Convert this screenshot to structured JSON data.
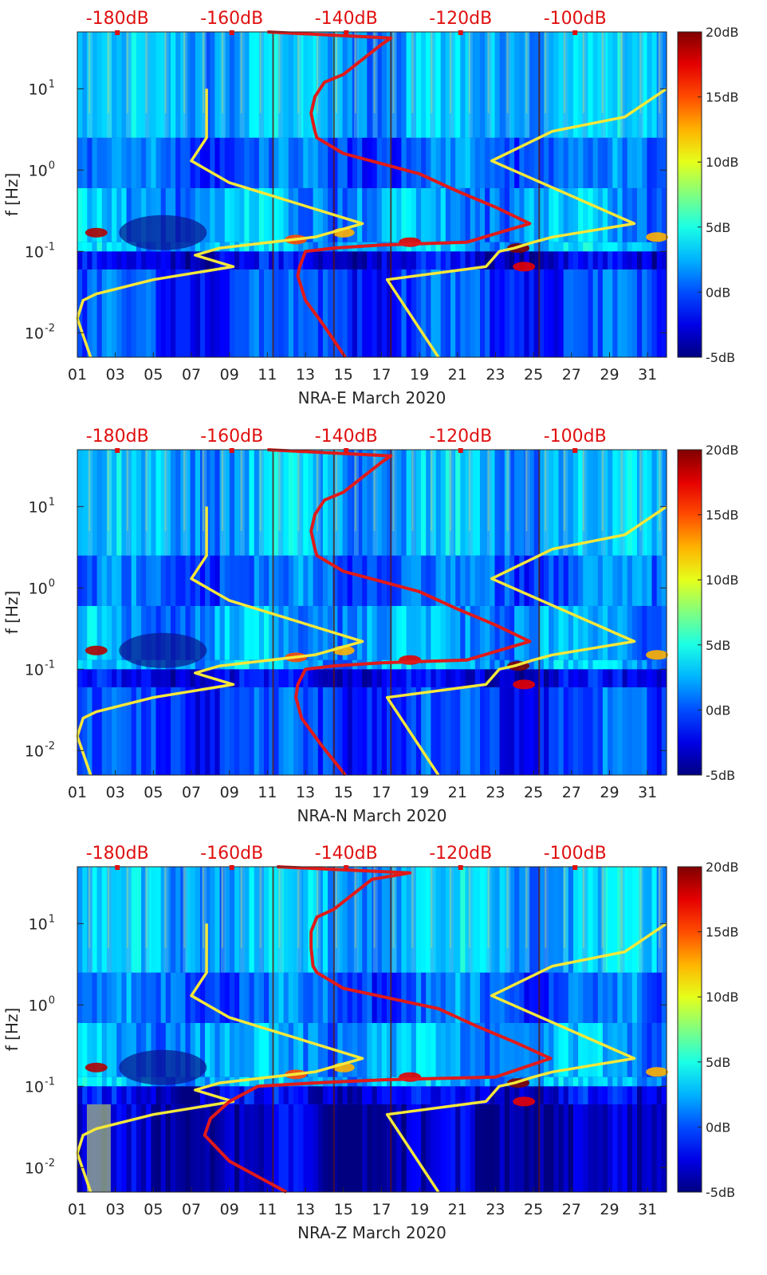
{
  "chart_data": [
    {
      "type": "heatmap",
      "title": "",
      "xlabel": "NRA-E March 2020",
      "ylabel": "f [Hz]",
      "x_ticks": [
        "01",
        "03",
        "05",
        "07",
        "09",
        "11",
        "13",
        "15",
        "17",
        "19",
        "21",
        "23",
        "25",
        "27",
        "29",
        "31"
      ],
      "x_range_days": [
        1,
        32
      ],
      "y_ticks": [
        {
          "value": 0.01,
          "base": "10",
          "exp": "-2"
        },
        {
          "value": 0.1,
          "base": "10",
          "exp": "-1"
        },
        {
          "value": 1,
          "base": "10",
          "exp": "0"
        },
        {
          "value": 10,
          "base": "10",
          "exp": "1"
        }
      ],
      "y_range_hz": [
        0.005,
        50
      ],
      "y_scale": "log",
      "top_axis_labels": [
        "-180dB",
        "-160dB",
        "-140dB",
        "-120dB",
        "-100dB"
      ],
      "top_axis_values_db": [
        -180,
        -160,
        -140,
        -120,
        -100
      ],
      "top_axis_range_db": [
        -187,
        -84
      ],
      "colorbar": {
        "ticks": [
          "20dB",
          "15dB",
          "10dB",
          "5dB",
          "0dB",
          "-5dB"
        ],
        "values": [
          20,
          15,
          10,
          5,
          0,
          -5
        ],
        "range": [
          -5,
          20
        ],
        "colormap": "jet"
      },
      "series": [
        {
          "name": "noise model (yellow)",
          "color": "#f5e83a",
          "points": [
            [
              7.8,
              10
            ],
            [
              7.8,
              2.5
            ],
            [
              7,
              1.3
            ],
            [
              9,
              0.7
            ],
            [
              16,
              0.22
            ],
            [
              13.5,
              0.15
            ],
            [
              8.5,
              0.11
            ],
            [
              7.2,
              0.09
            ],
            [
              9.2,
              0.065
            ],
            [
              5,
              0.045
            ],
            [
              2,
              0.03
            ],
            [
              1.3,
              0.025
            ],
            [
              1,
              0.015
            ],
            [
              1.7,
              0.005
            ]
          ]
        },
        {
          "name": "noise model (yellow, high)",
          "color": "#f5e83a",
          "points": [
            [
              32,
              10
            ],
            [
              29.8,
              4.5
            ],
            [
              26,
              3
            ],
            [
              22.8,
              1.3
            ],
            [
              30.3,
              0.22
            ],
            [
              26,
              0.15
            ],
            [
              25,
              0.13
            ],
            [
              24,
              0.11
            ],
            [
              23.2,
              0.1
            ],
            [
              22.5,
              0.065
            ],
            [
              17.3,
              0.045
            ],
            [
              20,
              0.005
            ]
          ]
        },
        {
          "name": "median PSD (red)",
          "color": "#e01a1a",
          "points": [
            [
              11,
              50
            ],
            [
              17.5,
              42
            ],
            [
              17,
              35
            ],
            [
              15,
              15
            ],
            [
              14,
              12
            ],
            [
              13.5,
              8
            ],
            [
              13.3,
              5
            ],
            [
              13.5,
              3
            ],
            [
              13.6,
              2.5
            ],
            [
              15,
              1.6
            ],
            [
              17,
              1.2
            ],
            [
              19,
              0.9
            ],
            [
              21,
              0.55
            ],
            [
              23,
              0.35
            ],
            [
              24.8,
              0.22
            ],
            [
              21.5,
              0.13
            ],
            [
              17,
              0.12
            ],
            [
              14.5,
              0.11
            ],
            [
              13,
              0.1
            ],
            [
              12.7,
              0.065
            ],
            [
              12.6,
              0.05
            ],
            [
              13,
              0.025
            ],
            [
              14,
              0.012
            ],
            [
              15.1,
              0.005
            ]
          ]
        }
      ]
    },
    {
      "type": "heatmap",
      "title": "",
      "xlabel": "NRA-N March 2020",
      "ylabel": "f [Hz]",
      "x_ticks": [
        "01",
        "03",
        "05",
        "07",
        "09",
        "11",
        "13",
        "15",
        "17",
        "19",
        "21",
        "23",
        "25",
        "27",
        "29",
        "31"
      ],
      "x_range_days": [
        1,
        32
      ],
      "y_ticks": [
        {
          "value": 0.01,
          "base": "10",
          "exp": "-2"
        },
        {
          "value": 0.1,
          "base": "10",
          "exp": "-1"
        },
        {
          "value": 1,
          "base": "10",
          "exp": "0"
        },
        {
          "value": 10,
          "base": "10",
          "exp": "1"
        }
      ],
      "y_range_hz": [
        0.005,
        50
      ],
      "y_scale": "log",
      "top_axis_labels": [
        "-180dB",
        "-160dB",
        "-140dB",
        "-120dB",
        "-100dB"
      ],
      "top_axis_values_db": [
        -180,
        -160,
        -140,
        -120,
        -100
      ],
      "top_axis_range_db": [
        -187,
        -84
      ],
      "colorbar": {
        "ticks": [
          "20dB",
          "15dB",
          "10dB",
          "5dB",
          "0dB",
          "-5dB"
        ],
        "values": [
          20,
          15,
          10,
          5,
          0,
          -5
        ],
        "range": [
          -5,
          20
        ],
        "colormap": "jet"
      },
      "series": [
        {
          "name": "noise model (yellow)",
          "color": "#f5e83a",
          "points": [
            [
              7.8,
              10
            ],
            [
              7.8,
              2.5
            ],
            [
              7,
              1.3
            ],
            [
              9,
              0.7
            ],
            [
              16,
              0.22
            ],
            [
              13.5,
              0.15
            ],
            [
              8.5,
              0.11
            ],
            [
              7.2,
              0.09
            ],
            [
              9.2,
              0.065
            ],
            [
              5,
              0.045
            ],
            [
              2,
              0.03
            ],
            [
              1.3,
              0.025
            ],
            [
              1,
              0.015
            ],
            [
              1.7,
              0.005
            ]
          ]
        },
        {
          "name": "noise model (yellow, high)",
          "color": "#f5e83a",
          "points": [
            [
              32,
              10
            ],
            [
              29.8,
              4.5
            ],
            [
              26,
              3
            ],
            [
              22.8,
              1.3
            ],
            [
              30.3,
              0.22
            ],
            [
              26,
              0.15
            ],
            [
              25,
              0.13
            ],
            [
              24,
              0.11
            ],
            [
              23.2,
              0.1
            ],
            [
              22.5,
              0.065
            ],
            [
              17.3,
              0.045
            ],
            [
              20,
              0.005
            ]
          ]
        },
        {
          "name": "median PSD (red)",
          "color": "#e01a1a",
          "points": [
            [
              11,
              50
            ],
            [
              17.5,
              42
            ],
            [
              17,
              35
            ],
            [
              15,
              15
            ],
            [
              14,
              12
            ],
            [
              13.5,
              8
            ],
            [
              13.3,
              5
            ],
            [
              13.5,
              3
            ],
            [
              13.6,
              2.5
            ],
            [
              15,
              1.6
            ],
            [
              17,
              1.2
            ],
            [
              19,
              0.9
            ],
            [
              21,
              0.55
            ],
            [
              23,
              0.35
            ],
            [
              24.8,
              0.22
            ],
            [
              21.5,
              0.13
            ],
            [
              17,
              0.12
            ],
            [
              14.5,
              0.11
            ],
            [
              13,
              0.1
            ],
            [
              12.6,
              0.065
            ],
            [
              12.5,
              0.045
            ],
            [
              12.8,
              0.025
            ],
            [
              13.8,
              0.012
            ],
            [
              15.1,
              0.005
            ]
          ]
        }
      ]
    },
    {
      "type": "heatmap",
      "title": "",
      "xlabel": "NRA-Z March 2020",
      "ylabel": "f [Hz]",
      "x_ticks": [
        "01",
        "03",
        "05",
        "07",
        "09",
        "11",
        "13",
        "15",
        "17",
        "19",
        "21",
        "23",
        "25",
        "27",
        "29",
        "31"
      ],
      "x_range_days": [
        1,
        32
      ],
      "y_ticks": [
        {
          "value": 0.01,
          "base": "10",
          "exp": "-2"
        },
        {
          "value": 0.1,
          "base": "10",
          "exp": "-1"
        },
        {
          "value": 1,
          "base": "10",
          "exp": "0"
        },
        {
          "value": 10,
          "base": "10",
          "exp": "1"
        }
      ],
      "y_range_hz": [
        0.005,
        50
      ],
      "y_scale": "log",
      "top_axis_labels": [
        "-180dB",
        "-160dB",
        "-140dB",
        "-120dB",
        "-100dB"
      ],
      "top_axis_values_db": [
        -180,
        -160,
        -140,
        -120,
        -100
      ],
      "top_axis_range_db": [
        -187,
        -84
      ],
      "colorbar": {
        "ticks": [
          "20dB",
          "15dB",
          "10dB",
          "5dB",
          "0dB",
          "-5dB"
        ],
        "values": [
          20,
          15,
          10,
          5,
          0,
          -5
        ],
        "range": [
          -5,
          20
        ],
        "colormap": "jet"
      },
      "series": [
        {
          "name": "noise model (yellow)",
          "color": "#f5e83a",
          "points": [
            [
              7.8,
              10
            ],
            [
              7.8,
              2.5
            ],
            [
              7,
              1.3
            ],
            [
              9,
              0.7
            ],
            [
              16,
              0.22
            ],
            [
              13.5,
              0.15
            ],
            [
              8.5,
              0.11
            ],
            [
              7.2,
              0.09
            ],
            [
              9.2,
              0.065
            ],
            [
              5,
              0.045
            ],
            [
              2,
              0.03
            ],
            [
              1.3,
              0.025
            ],
            [
              1,
              0.015
            ],
            [
              1.7,
              0.005
            ]
          ]
        },
        {
          "name": "noise model (yellow, high)",
          "color": "#f5e83a",
          "points": [
            [
              32,
              10
            ],
            [
              29.8,
              4.5
            ],
            [
              26,
              3
            ],
            [
              22.8,
              1.3
            ],
            [
              30.3,
              0.22
            ],
            [
              26,
              0.15
            ],
            [
              25,
              0.13
            ],
            [
              24,
              0.11
            ],
            [
              23.2,
              0.1
            ],
            [
              22.5,
              0.065
            ],
            [
              17.3,
              0.045
            ],
            [
              20,
              0.005
            ]
          ]
        },
        {
          "name": "median PSD (red)",
          "color": "#e01a1a",
          "points": [
            [
              11.5,
              50
            ],
            [
              18.5,
              42
            ],
            [
              16.5,
              35
            ],
            [
              14.5,
              15
            ],
            [
              13.6,
              12
            ],
            [
              13.3,
              8
            ],
            [
              13.3,
              5
            ],
            [
              13.4,
              3
            ],
            [
              13.6,
              2.5
            ],
            [
              15,
              1.6
            ],
            [
              17.5,
              1.2
            ],
            [
              20,
              0.9
            ],
            [
              22,
              0.55
            ],
            [
              24,
              0.35
            ],
            [
              25.9,
              0.22
            ],
            [
              23,
              0.13
            ],
            [
              17,
              0.12
            ],
            [
              13.5,
              0.11
            ],
            [
              10.5,
              0.1
            ],
            [
              9,
              0.065
            ],
            [
              8,
              0.04
            ],
            [
              7.7,
              0.025
            ],
            [
              9,
              0.012
            ],
            [
              12,
              0.005
            ]
          ]
        }
      ]
    }
  ]
}
